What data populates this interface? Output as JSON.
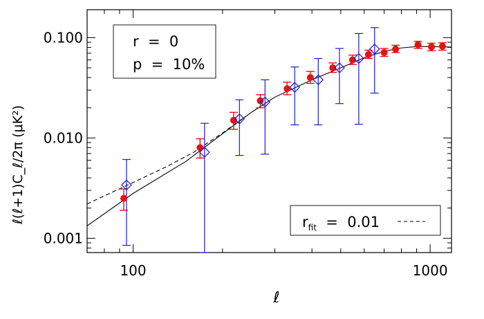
{
  "chart_data": {
    "type": "scatter",
    "xlabel": "ℓ",
    "ylabel": "ℓ(ℓ+1)C_ℓ/2π  (μK²)",
    "x_scale": "log",
    "y_scale": "log",
    "xlim": [
      70,
      1180
    ],
    "ylim": [
      0.00072,
      0.19
    ],
    "x_ticks": [
      {
        "value": 100,
        "label": "100"
      },
      {
        "value": 1000,
        "label": "1000"
      }
    ],
    "y_ticks": [
      {
        "value": 0.001,
        "label": "0.001"
      },
      {
        "value": 0.01,
        "label": "0.010"
      },
      {
        "value": 0.1,
        "label": "0.100"
      }
    ],
    "grid": false,
    "annotation_lines": [
      "r  =  0",
      "p  =  10%"
    ],
    "legend": {
      "position": "bottom-right",
      "label_main": "r",
      "label_sub": "fit",
      "label_rest": "  =  0.01"
    },
    "colors": {
      "red": "#e81010",
      "blue": "#1a1ad8",
      "line": "#000000"
    },
    "series": [
      {
        "marker": "circle",
        "color": "#e81010",
        "points": [
          {
            "x": 93,
            "y": 0.0025,
            "lo": 0.0019,
            "hi": 0.0031
          },
          {
            "x": 168,
            "y": 0.008,
            "lo": 0.0063,
            "hi": 0.0098
          },
          {
            "x": 218,
            "y": 0.015,
            "lo": 0.0122,
            "hi": 0.018
          },
          {
            "x": 268,
            "y": 0.0235,
            "lo": 0.02,
            "hi": 0.027
          },
          {
            "x": 330,
            "y": 0.031,
            "lo": 0.027,
            "hi": 0.036
          },
          {
            "x": 395,
            "y": 0.04,
            "lo": 0.035,
            "hi": 0.046
          },
          {
            "x": 470,
            "y": 0.05,
            "lo": 0.045,
            "hi": 0.056
          },
          {
            "x": 548,
            "y": 0.06,
            "lo": 0.054,
            "hi": 0.067
          },
          {
            "x": 620,
            "y": 0.068,
            "lo": 0.062,
            "hi": 0.075
          },
          {
            "x": 700,
            "y": 0.071,
            "lo": 0.065,
            "hi": 0.078
          },
          {
            "x": 765,
            "y": 0.077,
            "lo": 0.071,
            "hi": 0.084
          },
          {
            "x": 910,
            "y": 0.085,
            "lo": 0.078,
            "hi": 0.092
          },
          {
            "x": 1010,
            "y": 0.081,
            "lo": 0.074,
            "hi": 0.088
          },
          {
            "x": 1100,
            "y": 0.082,
            "lo": 0.075,
            "hi": 0.089
          }
        ]
      },
      {
        "marker": "diamond",
        "color": "#1a1ad8",
        "points": [
          {
            "x": 95,
            "y": 0.0034,
            "lo": 0.00085,
            "hi": 0.0061
          },
          {
            "x": 174,
            "y": 0.0072,
            "lo": 0.00072,
            "hi": 0.014
          },
          {
            "x": 228,
            "y": 0.0155,
            "lo": 0.0067,
            "hi": 0.024
          },
          {
            "x": 278,
            "y": 0.0228,
            "lo": 0.0069,
            "hi": 0.038
          },
          {
            "x": 350,
            "y": 0.032,
            "lo": 0.0135,
            "hi": 0.051
          },
          {
            "x": 420,
            "y": 0.038,
            "lo": 0.0135,
            "hi": 0.062
          },
          {
            "x": 495,
            "y": 0.05,
            "lo": 0.022,
            "hi": 0.078
          },
          {
            "x": 575,
            "y": 0.062,
            "lo": 0.0137,
            "hi": 0.11
          },
          {
            "x": 650,
            "y": 0.077,
            "lo": 0.028,
            "hi": 0.126
          }
        ]
      }
    ],
    "curves": [
      {
        "style": "solid",
        "points": [
          [
            70,
            0.00133
          ],
          [
            100,
            0.0028
          ],
          [
            150,
            0.0058
          ],
          [
            200,
            0.011
          ],
          [
            250,
            0.018
          ],
          [
            300,
            0.0255
          ],
          [
            400,
            0.038
          ],
          [
            500,
            0.05
          ],
          [
            600,
            0.063
          ],
          [
            700,
            0.073
          ],
          [
            800,
            0.079
          ],
          [
            900,
            0.0815
          ],
          [
            1000,
            0.0815
          ],
          [
            1100,
            0.081
          ],
          [
            1180,
            0.0805
          ]
        ]
      },
      {
        "style": "dashed",
        "points": [
          [
            70,
            0.0022
          ],
          [
            100,
            0.0036
          ],
          [
            130,
            0.0052
          ],
          [
            160,
            0.0072
          ],
          [
            200,
            0.0112
          ],
          [
            240,
            0.0165
          ]
        ]
      }
    ]
  }
}
